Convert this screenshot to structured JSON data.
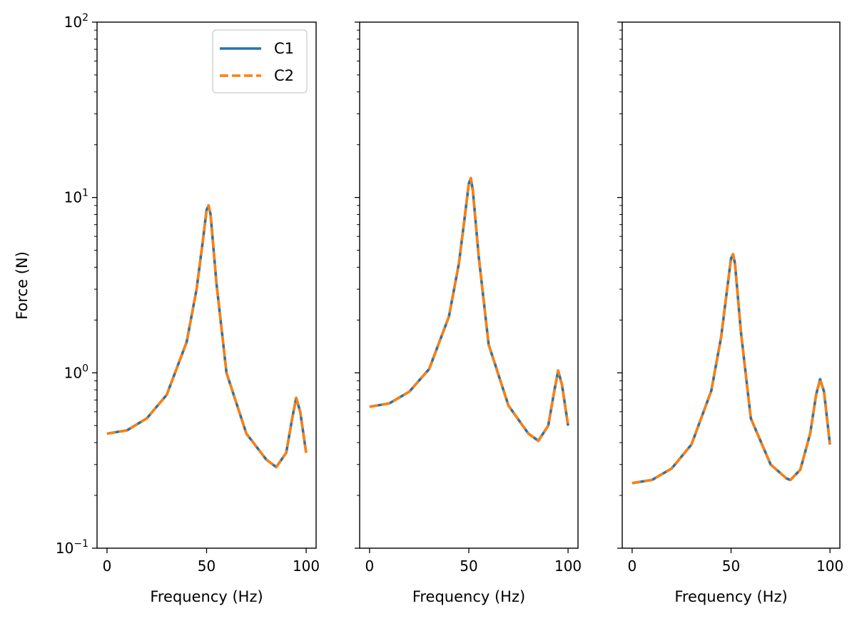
{
  "figure": {
    "ylabel": "Force (N)",
    "xlabel": "Frequency (Hz)",
    "legend": [
      "C1",
      "C2"
    ]
  },
  "chart_data": [
    {
      "type": "line",
      "xlabel": "Frequency (Hz)",
      "ylabel": "Force (N)",
      "xlim": [
        -5,
        105
      ],
      "ylim": [
        0.1,
        100
      ],
      "yscale": "log",
      "xticks": [
        0,
        50,
        100
      ],
      "xtick_labels": [
        "0",
        "50",
        "100"
      ],
      "ytick_labels": [
        "10^2",
        "10^1",
        "10^0",
        "10^-1"
      ],
      "legend_position": "top-right",
      "grid": false,
      "series": [
        {
          "name": "C1",
          "color": "#1f77b4",
          "style": "solid",
          "x": [
            0,
            10,
            20,
            30,
            40,
            45,
            48,
            50,
            51,
            52,
            55,
            60,
            70,
            80,
            85,
            90,
            93,
            95,
            97,
            100
          ],
          "y": [
            0.45,
            0.47,
            0.55,
            0.75,
            1.5,
            3.0,
            5.5,
            8.5,
            9.0,
            8.0,
            3.2,
            1.0,
            0.45,
            0.32,
            0.29,
            0.35,
            0.55,
            0.72,
            0.6,
            0.35
          ]
        },
        {
          "name": "C2",
          "color": "#ff7f0e",
          "style": "dashed",
          "x": [
            0,
            10,
            20,
            30,
            40,
            45,
            48,
            50,
            51,
            52,
            55,
            60,
            70,
            80,
            85,
            90,
            93,
            95,
            97,
            100
          ],
          "y": [
            0.45,
            0.47,
            0.55,
            0.75,
            1.5,
            3.0,
            5.5,
            8.5,
            9.0,
            8.0,
            3.2,
            1.0,
            0.45,
            0.32,
            0.29,
            0.35,
            0.55,
            0.72,
            0.6,
            0.35
          ]
        }
      ]
    },
    {
      "type": "line",
      "xlabel": "Frequency (Hz)",
      "xlim": [
        -5,
        105
      ],
      "ylim": [
        0.1,
        100
      ],
      "yscale": "log",
      "xticks": [
        0,
        50,
        100
      ],
      "xtick_labels": [
        "0",
        "50",
        "100"
      ],
      "grid": false,
      "series": [
        {
          "name": "C1",
          "color": "#1f77b4",
          "style": "solid",
          "x": [
            0,
            10,
            20,
            30,
            40,
            45,
            48,
            50,
            51,
            52,
            55,
            60,
            70,
            80,
            85,
            90,
            93,
            95,
            97,
            100
          ],
          "y": [
            0.64,
            0.67,
            0.78,
            1.05,
            2.1,
            4.2,
            7.8,
            12.0,
            12.9,
            11.0,
            4.6,
            1.45,
            0.65,
            0.45,
            0.41,
            0.5,
            0.78,
            1.03,
            0.85,
            0.5
          ]
        },
        {
          "name": "C2",
          "color": "#ff7f0e",
          "style": "dashed",
          "x": [
            0,
            10,
            20,
            30,
            40,
            45,
            48,
            50,
            51,
            52,
            55,
            60,
            70,
            80,
            85,
            90,
            93,
            95,
            97,
            100
          ],
          "y": [
            0.64,
            0.67,
            0.78,
            1.05,
            2.1,
            4.2,
            7.8,
            12.0,
            12.9,
            11.0,
            4.6,
            1.45,
            0.65,
            0.45,
            0.41,
            0.5,
            0.78,
            1.03,
            0.85,
            0.5
          ]
        }
      ]
    },
    {
      "type": "line",
      "xlabel": "Frequency (Hz)",
      "xlim": [
        -5,
        105
      ],
      "ylim": [
        0.1,
        100
      ],
      "yscale": "log",
      "xticks": [
        0,
        50,
        100
      ],
      "xtick_labels": [
        "0",
        "50",
        "100"
      ],
      "grid": false,
      "series": [
        {
          "name": "C1",
          "color": "#1f77b4",
          "style": "solid",
          "x": [
            0,
            10,
            20,
            30,
            40,
            45,
            48,
            50,
            51,
            52,
            55,
            60,
            70,
            78,
            80,
            85,
            90,
            93,
            95,
            97,
            100
          ],
          "y": [
            0.235,
            0.245,
            0.285,
            0.39,
            0.79,
            1.6,
            3.0,
            4.5,
            4.75,
            4.2,
            1.7,
            0.55,
            0.3,
            0.25,
            0.245,
            0.28,
            0.45,
            0.75,
            0.92,
            0.78,
            0.39
          ]
        },
        {
          "name": "C2",
          "color": "#ff7f0e",
          "style": "dashed",
          "x": [
            0,
            10,
            20,
            30,
            40,
            45,
            48,
            50,
            51,
            52,
            55,
            60,
            70,
            78,
            80,
            85,
            90,
            93,
            95,
            97,
            100
          ],
          "y": [
            0.235,
            0.245,
            0.285,
            0.39,
            0.79,
            1.6,
            3.0,
            4.5,
            4.75,
            4.2,
            1.7,
            0.55,
            0.3,
            0.25,
            0.245,
            0.28,
            0.45,
            0.75,
            0.92,
            0.78,
            0.39
          ]
        }
      ]
    }
  ]
}
